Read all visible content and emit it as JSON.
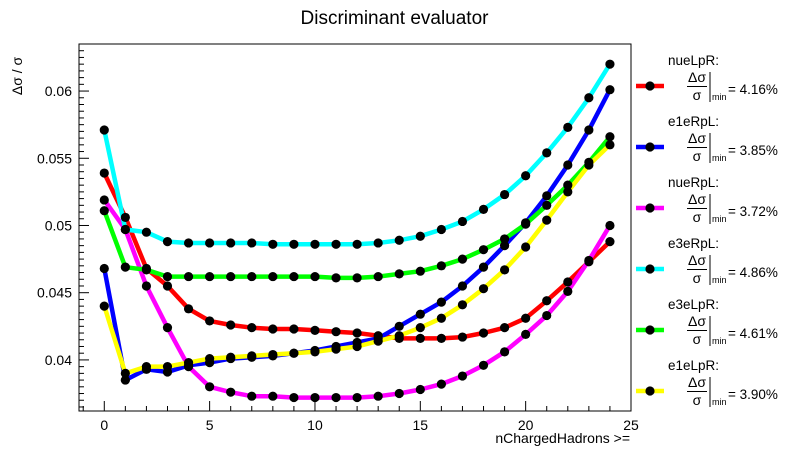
{
  "chart_data": {
    "type": "line",
    "title": "Discriminant evaluator",
    "xlabel": "nChargedHadrons >=",
    "ylabel": "Δσ / σ",
    "xlim": [
      -1.2,
      25
    ],
    "ylim": [
      0.0362,
      0.0635
    ],
    "xticks": [
      0,
      5,
      10,
      15,
      20,
      25
    ],
    "xtick_labels": [
      "0",
      "5",
      "10",
      "15",
      "20",
      "25"
    ],
    "yticks": [
      0.04,
      0.045,
      0.05,
      0.055,
      0.06
    ],
    "ytick_labels": [
      "0.04",
      "0.045",
      "0.05",
      "0.055",
      "0.06"
    ],
    "grid": false,
    "legend_position": "right",
    "legend_value_label": "min",
    "x": [
      0,
      1,
      2,
      3,
      4,
      5,
      6,
      7,
      8,
      9,
      10,
      11,
      12,
      13,
      14,
      15,
      16,
      17,
      18,
      19,
      20,
      21,
      22,
      23,
      24
    ],
    "series": [
      {
        "name": "nueLpR:",
        "min_label": "= 4.16%",
        "color": "#ff0000",
        "values": [
          0.0539,
          0.0506,
          0.0468,
          0.0455,
          0.0438,
          0.0429,
          0.0426,
          0.0424,
          0.0423,
          0.0423,
          0.0422,
          0.0421,
          0.042,
          0.0418,
          0.0416,
          0.0416,
          0.0416,
          0.0417,
          0.042,
          0.0424,
          0.0431,
          0.0444,
          0.0458,
          0.0473,
          0.0488
        ]
      },
      {
        "name": "e1eRpL:",
        "min_label": "= 3.85%",
        "color": "#0000ff",
        "values": [
          0.0468,
          0.0385,
          0.0393,
          0.0391,
          0.0396,
          0.0398,
          0.0401,
          0.0402,
          0.0403,
          0.0405,
          0.0407,
          0.041,
          0.0413,
          0.0416,
          0.0425,
          0.0434,
          0.0443,
          0.0455,
          0.0469,
          0.0485,
          0.0502,
          0.0522,
          0.0545,
          0.0571,
          0.0601
        ]
      },
      {
        "name": "nueRpL:",
        "min_label": "= 3.72%",
        "color": "#ff00ff",
        "values": [
          0.0519,
          0.0497,
          0.0455,
          0.0424,
          0.0395,
          0.038,
          0.0376,
          0.0373,
          0.0373,
          0.0372,
          0.0372,
          0.0372,
          0.0372,
          0.0373,
          0.0375,
          0.0378,
          0.0382,
          0.0388,
          0.0396,
          0.0406,
          0.0419,
          0.0433,
          0.0451,
          0.0474,
          0.05
        ]
      },
      {
        "name": "e3eRpL:",
        "min_label": "= 4.86%",
        "color": "#00ffff",
        "values": [
          0.0571,
          0.0497,
          0.0495,
          0.0488,
          0.0487,
          0.0487,
          0.0487,
          0.0487,
          0.0486,
          0.0486,
          0.0486,
          0.0486,
          0.0486,
          0.0487,
          0.0489,
          0.0492,
          0.0497,
          0.0503,
          0.0512,
          0.0523,
          0.0537,
          0.0554,
          0.0573,
          0.0595,
          0.062
        ]
      },
      {
        "name": "e3eLpR:",
        "min_label": "= 4.61%",
        "color": "#00ff00",
        "values": [
          0.0511,
          0.0469,
          0.0467,
          0.0462,
          0.0462,
          0.0462,
          0.0462,
          0.0462,
          0.0462,
          0.0462,
          0.0462,
          0.0461,
          0.0461,
          0.0462,
          0.0464,
          0.0466,
          0.047,
          0.0475,
          0.0482,
          0.049,
          0.0501,
          0.0515,
          0.053,
          0.0547,
          0.0566
        ]
      },
      {
        "name": "e1eLpR:",
        "min_label": "= 3.90%",
        "color": "#ffff00",
        "values": [
          0.044,
          0.039,
          0.0395,
          0.0395,
          0.0398,
          0.0401,
          0.0402,
          0.0403,
          0.0404,
          0.0405,
          0.0406,
          0.0408,
          0.041,
          0.0414,
          0.0418,
          0.0424,
          0.0431,
          0.0441,
          0.0453,
          0.0467,
          0.0484,
          0.0504,
          0.0525,
          0.0545,
          0.056
        ]
      }
    ]
  }
}
